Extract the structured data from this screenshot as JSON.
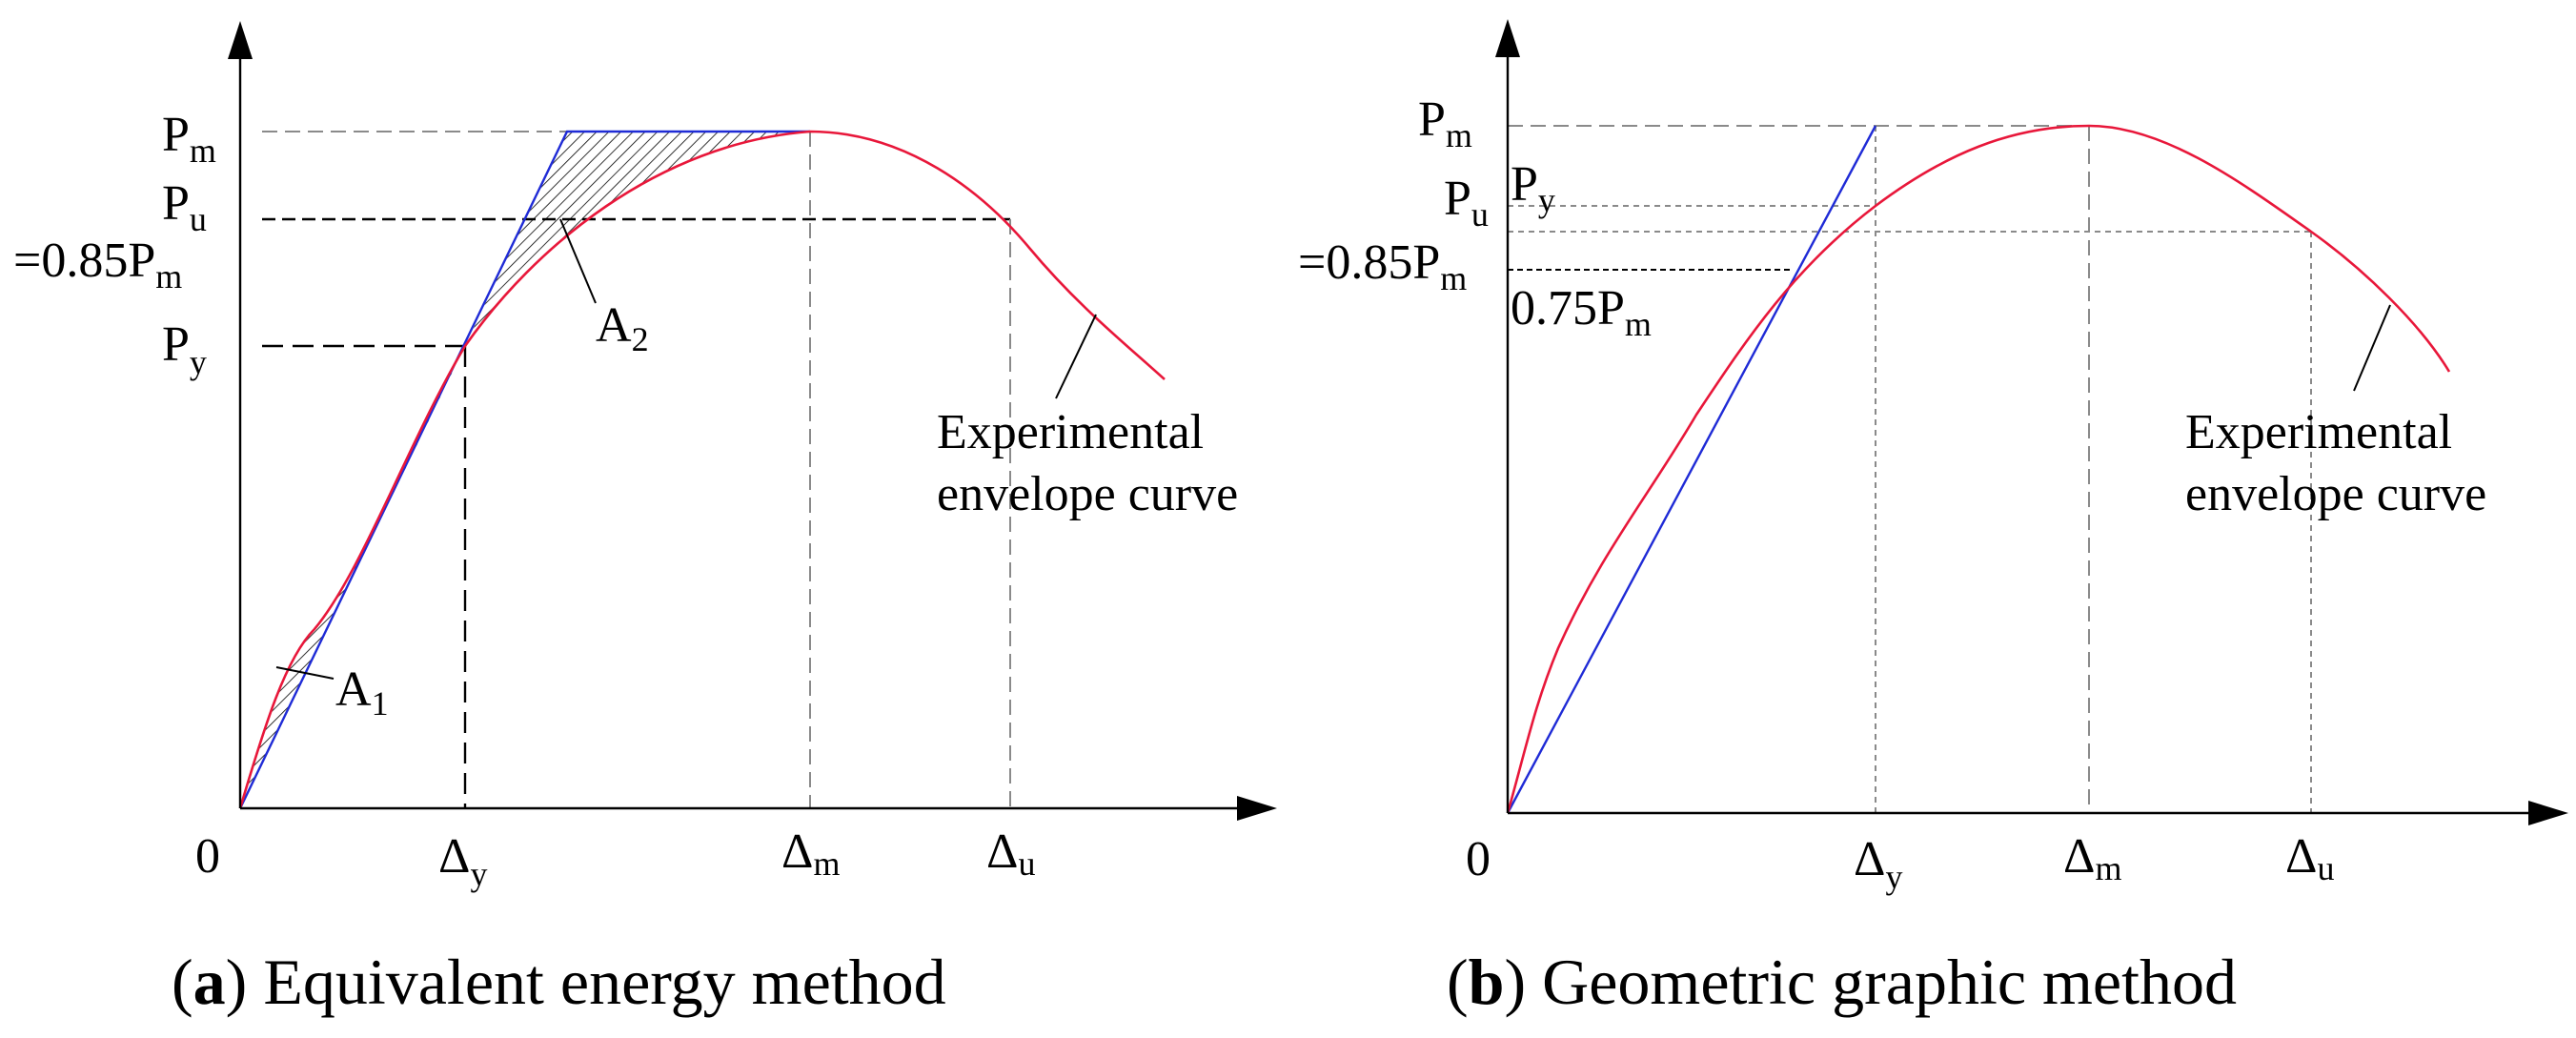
{
  "panels": [
    {
      "id": "a",
      "caption_letter": "a",
      "caption_text": " Equivalent energy method",
      "origin": "0",
      "y_labels": {
        "pm": {
          "base": "P",
          "sub": "m"
        },
        "pu": {
          "base": "P",
          "sub": "u"
        },
        "pu_eq": {
          "base": "=0.85P",
          "sub": "m"
        },
        "py": {
          "base": "P",
          "sub": "y"
        }
      },
      "x_labels": {
        "dy": {
          "base": "Δ",
          "sub": "y"
        },
        "dm": {
          "base": "Δ",
          "sub": "m"
        },
        "du": {
          "base": "Δ",
          "sub": "u"
        }
      },
      "areas": {
        "a1": {
          "base": "A",
          "sub": "1"
        },
        "a2": {
          "base": "A",
          "sub": "2"
        }
      },
      "curve_label": [
        "Experimental",
        "envelope curve"
      ]
    },
    {
      "id": "b",
      "caption_letter": "b",
      "caption_text": " Geometric graphic method",
      "origin": "0",
      "y_labels": {
        "pm": {
          "base": "P",
          "sub": "m"
        },
        "py": {
          "base": "P",
          "sub": "y"
        },
        "pu": {
          "base": "P",
          "sub": "u"
        },
        "pu_eq": {
          "base": "=0.85P",
          "sub": "m"
        },
        "p75": {
          "base": "0.75P",
          "sub": "m"
        }
      },
      "x_labels": {
        "dy": {
          "base": "Δ",
          "sub": "y"
        },
        "dm": {
          "base": "Δ",
          "sub": "m"
        },
        "du": {
          "base": "Δ",
          "sub": "u"
        }
      },
      "curve_label": [
        "Experimental",
        "envelope curve"
      ]
    }
  ],
  "colors": {
    "curve": "#e8173a",
    "secant": "#1f2bd6",
    "axis": "#000000",
    "dashed_gray": "#8a8a8a",
    "dashed_black": "#000000"
  }
}
